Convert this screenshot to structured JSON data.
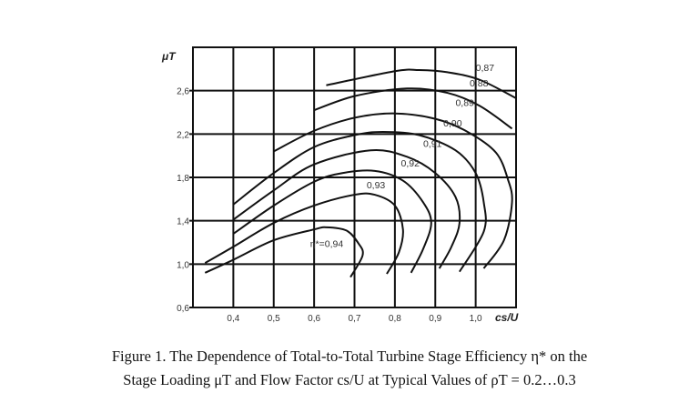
{
  "chart_data": {
    "type": "line",
    "title": "",
    "xlabel": "cs/U",
    "ylabel": "μT",
    "xlim": [
      0.3,
      1.1
    ],
    "ylim": [
      0.6,
      3.0
    ],
    "xticks": [
      "0,4",
      "0,5",
      "0,6",
      "0,7",
      "0,8",
      "0,9",
      "1,0"
    ],
    "xtick_values": [
      0.4,
      0.5,
      0.6,
      0.7,
      0.8,
      0.9,
      1.0
    ],
    "yticks": [
      "0,6",
      "1,0",
      "1,4",
      "1,8",
      "2,2",
      "2,6"
    ],
    "ytick_values": [
      0.6,
      1.0,
      1.4,
      1.8,
      2.2,
      2.6
    ],
    "grid": true,
    "series": [
      {
        "name": "η*=0,87",
        "label": "0,87",
        "points": [
          [
            0.63,
            2.65
          ],
          [
            0.8,
            2.78
          ],
          [
            0.86,
            2.79
          ],
          [
            0.93,
            2.77
          ],
          [
            1.01,
            2.7
          ],
          [
            1.1,
            2.53
          ]
        ]
      },
      {
        "name": "0,88",
        "label": "0,88",
        "points": [
          [
            0.6,
            2.42
          ],
          [
            0.7,
            2.55
          ],
          [
            0.83,
            2.62
          ],
          [
            0.93,
            2.58
          ],
          [
            1.01,
            2.46
          ],
          [
            1.09,
            2.25
          ]
        ]
      },
      {
        "name": "0,89",
        "label": "0,89",
        "points": [
          [
            0.5,
            2.04
          ],
          [
            0.6,
            2.23
          ],
          [
            0.7,
            2.35
          ],
          [
            0.8,
            2.39
          ],
          [
            0.9,
            2.34
          ],
          [
            0.98,
            2.22
          ],
          [
            1.05,
            2.03
          ],
          [
            1.08,
            1.78
          ],
          [
            1.09,
            1.57
          ],
          [
            1.07,
            1.22
          ],
          [
            1.02,
            0.96
          ]
        ]
      },
      {
        "name": "0,90",
        "label": "0,90",
        "points": [
          [
            0.4,
            1.55
          ],
          [
            0.5,
            1.84
          ],
          [
            0.6,
            2.08
          ],
          [
            0.7,
            2.19
          ],
          [
            0.77,
            2.22
          ],
          [
            0.86,
            2.19
          ],
          [
            0.95,
            2.05
          ],
          [
            1.0,
            1.84
          ],
          [
            1.02,
            1.57
          ],
          [
            1.02,
            1.3
          ],
          [
            0.96,
            0.93
          ]
        ]
      },
      {
        "name": "0,91",
        "label": "0,91",
        "points": [
          [
            0.4,
            1.41
          ],
          [
            0.5,
            1.68
          ],
          [
            0.6,
            1.92
          ],
          [
            0.74,
            2.05
          ],
          [
            0.83,
            1.99
          ],
          [
            0.9,
            1.84
          ],
          [
            0.95,
            1.62
          ],
          [
            0.96,
            1.38
          ],
          [
            0.94,
            1.16
          ],
          [
            0.91,
            0.96
          ]
        ]
      },
      {
        "name": "0,92",
        "label": "0,92",
        "points": [
          [
            0.4,
            1.28
          ],
          [
            0.5,
            1.54
          ],
          [
            0.6,
            1.76
          ],
          [
            0.67,
            1.84
          ],
          [
            0.75,
            1.86
          ],
          [
            0.82,
            1.77
          ],
          [
            0.87,
            1.57
          ],
          [
            0.89,
            1.38
          ],
          [
            0.87,
            1.14
          ],
          [
            0.84,
            0.92
          ]
        ]
      },
      {
        "name": "0,93",
        "label": "0,93",
        "points": [
          [
            0.33,
            1.01
          ],
          [
            0.4,
            1.16
          ],
          [
            0.5,
            1.38
          ],
          [
            0.6,
            1.54
          ],
          [
            0.7,
            1.64
          ],
          [
            0.75,
            1.64
          ],
          [
            0.8,
            1.54
          ],
          [
            0.82,
            1.32
          ],
          [
            0.81,
            1.11
          ],
          [
            0.78,
            0.91
          ]
        ]
      },
      {
        "name": "η*=0,94",
        "label": "η*=0,94",
        "points": [
          [
            0.33,
            0.92
          ],
          [
            0.4,
            1.04
          ],
          [
            0.5,
            1.22
          ],
          [
            0.6,
            1.32
          ],
          [
            0.63,
            1.34
          ],
          [
            0.68,
            1.31
          ],
          [
            0.71,
            1.19
          ],
          [
            0.72,
            1.08
          ],
          [
            0.69,
            0.88
          ]
        ]
      }
    ],
    "legend": "inline labels on curves"
  },
  "caption": {
    "line1": "Figure 1. The Dependence of Total-to-Total Turbine Stage Efficiency η* on the",
    "line2": "Stage Loading μT and Flow Factor cs/U at Typical Values of ρT = 0.2…0.3"
  }
}
